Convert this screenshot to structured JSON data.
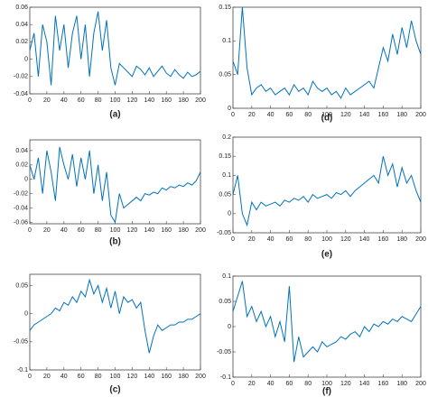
{
  "chart_data": [
    {
      "type": "line",
      "title": "(a)",
      "xlim": [
        0,
        200
      ],
      "xticks": [
        0,
        20,
        40,
        60,
        80,
        100,
        120,
        140,
        160,
        180,
        200
      ],
      "ylim": [
        -0.04,
        0.06
      ],
      "yticks": [
        -0.04,
        -0.02,
        0,
        0.02,
        0.04,
        0.06
      ],
      "color": "#0072bd",
      "x": [
        0,
        5,
        10,
        15,
        20,
        25,
        30,
        35,
        40,
        45,
        50,
        55,
        60,
        65,
        70,
        75,
        80,
        85,
        90,
        95,
        100,
        105,
        110,
        115,
        120,
        125,
        130,
        135,
        140,
        145,
        150,
        155,
        160,
        165,
        170,
        175,
        180,
        185,
        190,
        195,
        200
      ],
      "values": [
        0.01,
        0.03,
        -0.02,
        0.04,
        0.02,
        -0.03,
        0.05,
        0.01,
        0.04,
        -0.01,
        0.03,
        0.05,
        0.0,
        0.04,
        -0.02,
        0.03,
        0.055,
        0.01,
        0.045,
        -0.01,
        -0.03,
        -0.005,
        -0.01,
        -0.015,
        -0.02,
        -0.008,
        -0.012,
        -0.018,
        -0.01,
        -0.02,
        -0.014,
        -0.008,
        -0.016,
        -0.02,
        -0.012,
        -0.018,
        -0.022,
        -0.015,
        -0.02,
        -0.018,
        -0.014
      ]
    },
    {
      "type": "line",
      "title": "(b)",
      "xlim": [
        0,
        200
      ],
      "xticks": [
        0,
        20,
        40,
        60,
        80,
        100,
        120,
        140,
        160,
        180,
        200
      ],
      "ylim": [
        -0.062,
        0.055
      ],
      "yticks": [
        -0.06,
        -0.04,
        -0.02,
        0,
        0.02,
        0.04
      ],
      "color": "#0072bd",
      "x": [
        0,
        5,
        10,
        15,
        20,
        25,
        30,
        35,
        40,
        45,
        50,
        55,
        60,
        65,
        70,
        75,
        80,
        85,
        90,
        95,
        100,
        105,
        110,
        115,
        120,
        125,
        130,
        135,
        140,
        145,
        150,
        155,
        160,
        165,
        170,
        175,
        180,
        185,
        190,
        195,
        200
      ],
      "values": [
        0.02,
        0.0,
        0.03,
        -0.02,
        0.04,
        0.01,
        -0.03,
        0.045,
        0.02,
        0.0,
        0.035,
        -0.01,
        0.03,
        0.0,
        0.04,
        -0.02,
        0.02,
        -0.03,
        0.01,
        -0.05,
        -0.06,
        -0.02,
        -0.04,
        -0.035,
        -0.03,
        -0.025,
        -0.03,
        -0.02,
        -0.022,
        -0.018,
        -0.02,
        -0.012,
        -0.015,
        -0.01,
        -0.012,
        -0.008,
        -0.01,
        -0.005,
        -0.008,
        -0.002,
        0.01
      ]
    },
    {
      "type": "line",
      "title": "(c)",
      "xlim": [
        0,
        200
      ],
      "xticks": [
        0,
        20,
        40,
        60,
        80,
        100,
        120,
        140,
        160,
        180,
        200
      ],
      "ylim": [
        -0.1,
        0.07
      ],
      "yticks": [
        -0.1,
        -0.05,
        0,
        0.05
      ],
      "color": "#0072bd",
      "x": [
        0,
        5,
        10,
        15,
        20,
        25,
        30,
        35,
        40,
        45,
        50,
        55,
        60,
        65,
        70,
        75,
        80,
        85,
        90,
        95,
        100,
        105,
        110,
        115,
        120,
        125,
        130,
        135,
        140,
        145,
        150,
        155,
        160,
        165,
        170,
        175,
        180,
        185,
        190,
        195,
        200
      ],
      "values": [
        -0.03,
        -0.02,
        -0.015,
        -0.01,
        -0.005,
        0.0,
        0.01,
        0.005,
        0.02,
        0.015,
        0.03,
        0.02,
        0.04,
        0.03,
        0.06,
        0.035,
        0.05,
        0.02,
        0.045,
        0.01,
        0.04,
        0.0,
        0.03,
        0.02,
        0.025,
        0.01,
        0.02,
        -0.03,
        -0.07,
        -0.04,
        -0.02,
        -0.03,
        -0.025,
        -0.02,
        -0.02,
        -0.015,
        -0.015,
        -0.01,
        -0.01,
        -0.005,
        0.0
      ]
    },
    {
      "type": "line",
      "title": "(d)",
      "xlim": [
        0,
        200
      ],
      "xticks": [
        0,
        20,
        40,
        60,
        80,
        100,
        120,
        140,
        160,
        180,
        200
      ],
      "ylim": [
        0,
        0.15
      ],
      "yticks": [
        0,
        0.05,
        0.1,
        0.15
      ],
      "color": "#0072bd",
      "x": [
        0,
        5,
        10,
        15,
        20,
        25,
        30,
        35,
        40,
        45,
        50,
        55,
        60,
        65,
        70,
        75,
        80,
        85,
        90,
        95,
        100,
        105,
        110,
        115,
        120,
        125,
        130,
        135,
        140,
        145,
        150,
        155,
        160,
        165,
        170,
        175,
        180,
        185,
        190,
        195,
        200
      ],
      "values": [
        0.07,
        0.05,
        0.15,
        0.06,
        0.02,
        0.03,
        0.035,
        0.025,
        0.03,
        0.02,
        0.025,
        0.03,
        0.02,
        0.035,
        0.025,
        0.03,
        0.02,
        0.04,
        0.03,
        0.025,
        0.03,
        0.02,
        0.025,
        0.015,
        0.03,
        0.02,
        0.025,
        0.03,
        0.035,
        0.04,
        0.03,
        0.06,
        0.09,
        0.07,
        0.11,
        0.08,
        0.12,
        0.09,
        0.13,
        0.1,
        0.08
      ]
    },
    {
      "type": "line",
      "title": "(e)",
      "xlim": [
        0,
        200
      ],
      "xticks": [
        0,
        20,
        40,
        60,
        80,
        100,
        120,
        140,
        160,
        180,
        200
      ],
      "ylim": [
        -0.05,
        0.2
      ],
      "yticks": [
        -0.05,
        0,
        0.05,
        0.1,
        0.15,
        0.2
      ],
      "color": "#0072bd",
      "x": [
        0,
        5,
        10,
        15,
        20,
        25,
        30,
        35,
        40,
        45,
        50,
        55,
        60,
        65,
        70,
        75,
        80,
        85,
        90,
        95,
        100,
        105,
        110,
        115,
        120,
        125,
        130,
        135,
        140,
        145,
        150,
        155,
        160,
        165,
        170,
        175,
        180,
        185,
        190,
        195,
        200
      ],
      "values": [
        0.05,
        0.1,
        0.0,
        -0.03,
        0.03,
        0.01,
        0.03,
        0.02,
        0.025,
        0.03,
        0.02,
        0.035,
        0.03,
        0.04,
        0.035,
        0.045,
        0.03,
        0.05,
        0.04,
        0.045,
        0.05,
        0.04,
        0.055,
        0.05,
        0.06,
        0.045,
        0.06,
        0.07,
        0.08,
        0.09,
        0.1,
        0.08,
        0.15,
        0.1,
        0.13,
        0.07,
        0.12,
        0.08,
        0.1,
        0.06,
        0.03
      ]
    },
    {
      "type": "line",
      "title": "(f)",
      "xlim": [
        0,
        200
      ],
      "xticks": [
        0,
        20,
        40,
        60,
        80,
        100,
        120,
        140,
        160,
        180,
        200
      ],
      "ylim": [
        -0.1,
        0.1
      ],
      "yticks": [
        -0.1,
        -0.05,
        0,
        0.05,
        0.1
      ],
      "color": "#0072bd",
      "x": [
        0,
        5,
        10,
        15,
        20,
        25,
        30,
        35,
        40,
        45,
        50,
        55,
        60,
        65,
        70,
        75,
        80,
        85,
        90,
        95,
        100,
        105,
        110,
        115,
        120,
        125,
        130,
        135,
        140,
        145,
        150,
        155,
        160,
        165,
        170,
        175,
        180,
        185,
        190,
        195,
        200
      ],
      "values": [
        0.03,
        0.06,
        0.09,
        0.02,
        0.04,
        0.01,
        0.03,
        0.0,
        0.02,
        -0.02,
        0.01,
        -0.03,
        0.08,
        -0.07,
        -0.02,
        -0.06,
        -0.05,
        -0.04,
        -0.05,
        -0.03,
        -0.04,
        -0.035,
        -0.03,
        -0.02,
        -0.025,
        -0.015,
        -0.01,
        -0.02,
        0.0,
        -0.01,
        0.005,
        0.0,
        0.01,
        0.005,
        0.015,
        0.01,
        0.02,
        0.015,
        0.01,
        0.025,
        0.04
      ]
    }
  ]
}
